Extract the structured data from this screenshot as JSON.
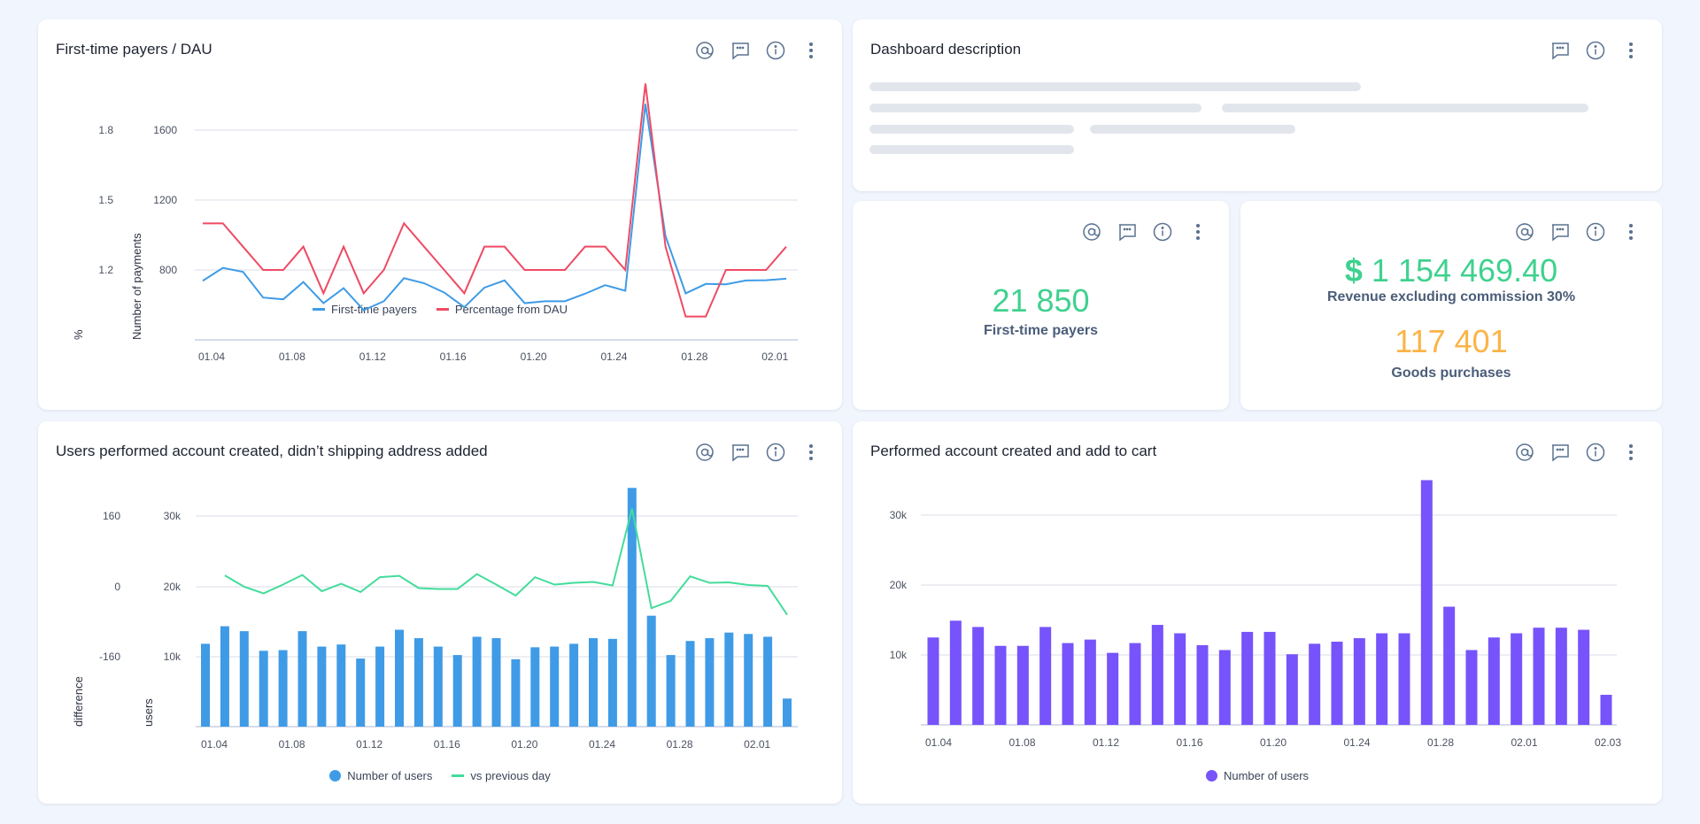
{
  "colors": {
    "blue": "#3f9be6",
    "red": "#ef4b64",
    "green": "#43dc9b",
    "purple": "#7753fb",
    "kpi_green": "#3fd18f",
    "kpi_orange": "#fbb447",
    "icon": "#5a7290"
  },
  "icons": [
    "mention-icon",
    "comment-icon",
    "info-icon",
    "more-vertical-icon"
  ],
  "card1": {
    "title": "First-time payers / DAU"
  },
  "desc": {
    "title": "Dashboard description"
  },
  "kpi1": {
    "value": "21 850",
    "label": "First-time payers"
  },
  "kpi2": {
    "currency": "$",
    "value": "1 154 469.40",
    "label": "Revenue excluding commission 30%",
    "value2": "117 401",
    "label2": "Goods purchases"
  },
  "card3": {
    "title": "Users performed account created, didn’t shipping address added"
  },
  "card4": {
    "title": "Performed account created and add to cart"
  },
  "chart_data": [
    {
      "type": "line",
      "title": "First-time payers / DAU",
      "ylabel": "Number of payments",
      "y2label": "%",
      "yticks": [
        "800",
        "1200",
        "1600"
      ],
      "ytick_values": [
        800,
        1200,
        1600
      ],
      "ylim": [
        400,
        1600
      ],
      "y2ticks": [
        "1.2",
        "1.5",
        "1.8"
      ],
      "y2lim": [
        0.9,
        1.8
      ],
      "xticks": [
        "01.04",
        "01.08",
        "01.12",
        "01.16",
        "01.20",
        "01.24",
        "01.28",
        "02.01"
      ],
      "x": [
        "01.04",
        "01.05",
        "01.06",
        "01.07",
        "01.08",
        "01.09",
        "01.10",
        "01.11",
        "01.12",
        "01.13",
        "01.14",
        "01.15",
        "01.16",
        "01.17",
        "01.18",
        "01.19",
        "01.20",
        "01.21",
        "01.22",
        "01.23",
        "01.24",
        "01.25",
        "01.26",
        "01.27",
        "01.28",
        "01.29",
        "01.30",
        "01.31",
        "02.01",
        "02.02"
      ],
      "series": [
        {
          "name": "First-time payers",
          "axis": "left",
          "values": [
            738,
            812,
            789,
            642,
            632,
            731,
            610,
            696,
            570,
            621,
            753,
            724,
            671,
            587,
            699,
            740,
            610,
            621,
            621,
            664,
            713,
            681,
            1750,
            993,
            666,
            720,
            718,
            740,
            741,
            750
          ]
        },
        {
          "name": "Percentage from DAU",
          "axis": "right",
          "values": [
            1.4,
            1.4,
            1.3,
            1.2,
            1.2,
            1.3,
            1.1,
            1.3,
            1.1,
            1.2,
            1.4,
            1.3,
            1.2,
            1.1,
            1.3,
            1.3,
            1.2,
            1.2,
            1.2,
            1.3,
            1.3,
            1.2,
            2.0,
            1.3,
            1.0,
            1.0,
            1.2,
            1.2,
            1.2,
            1.3
          ]
        }
      ]
    },
    {
      "type": "bar",
      "title": "Users performed account created, didn’t shipping address added",
      "ylabel": "users",
      "y2label": "difference",
      "yticks": [
        "10k",
        "20k",
        "30k"
      ],
      "ylim": [
        0,
        30000
      ],
      "y2ticks": [
        "-160",
        "0",
        "160"
      ],
      "y2lim": [
        -160,
        160
      ],
      "xticks": [
        "01.04",
        "01.08",
        "01.12",
        "01.16",
        "01.20",
        "01.24",
        "01.28",
        "02.01"
      ],
      "series": [
        {
          "name": "Number of users",
          "values": [
            11800,
            14300,
            13600,
            10800,
            10900,
            13600,
            11400,
            11700,
            9700,
            11400,
            13800,
            12600,
            11400,
            10200,
            12800,
            12600,
            9600,
            11300,
            11400,
            11800,
            12600,
            12500,
            34000,
            15800,
            10200,
            12200,
            12600,
            13400,
            13200,
            12800,
            4000
          ]
        },
        {
          "name": "vs previous day",
          "values": [
            null,
            24,
            -2,
            -17,
            3,
            25,
            -12,
            5,
            -14,
            20,
            23,
            -5,
            -7,
            -7,
            27,
            3,
            -22,
            20,
            3,
            7,
            9,
            1,
            177,
            -51,
            -34,
            22,
            7,
            8,
            2,
            0,
            -66
          ]
        }
      ]
    },
    {
      "type": "bar",
      "title": "Performed account created and add to cart",
      "yticks": [
        "10k",
        "20k",
        "30k"
      ],
      "ylim": [
        0,
        30000
      ],
      "xticks": [
        "01.04",
        "01.08",
        "01.12",
        "01.16",
        "01.20",
        "01.24",
        "01.28",
        "02.01",
        "02.03"
      ],
      "series": [
        {
          "name": "Number of users",
          "values": [
            12500,
            14900,
            14000,
            11300,
            11300,
            14000,
            11700,
            12200,
            10300,
            11700,
            14300,
            13100,
            11400,
            10700,
            13300,
            13300,
            10100,
            11600,
            11900,
            12400,
            13100,
            13100,
            35000,
            16900,
            10700,
            12500,
            13100,
            13900,
            13900,
            13600,
            4300
          ]
        }
      ]
    }
  ]
}
